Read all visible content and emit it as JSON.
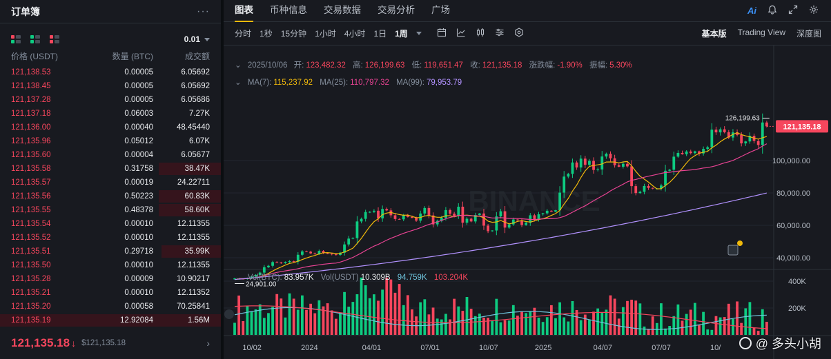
{
  "orderbook": {
    "title": "订单簿",
    "more": "···",
    "precision": "0.01",
    "columns": [
      "价格 (USDT)",
      "数量 (BTC)",
      "成交额"
    ],
    "rows": [
      {
        "price": "121,138.53",
        "qty": "0.00005",
        "total": "6.05692",
        "depth": 0
      },
      {
        "price": "121,138.45",
        "qty": "0.00005",
        "total": "6.05692",
        "depth": 0
      },
      {
        "price": "121,137.28",
        "qty": "0.00005",
        "total": "6.05686",
        "depth": 0
      },
      {
        "price": "121,137.18",
        "qty": "0.06003",
        "total": "7.27K",
        "depth": 0
      },
      {
        "price": "121,136.00",
        "qty": "0.00040",
        "total": "48.45440",
        "depth": 0
      },
      {
        "price": "121,135.96",
        "qty": "0.05012",
        "total": "6.07K",
        "depth": 0
      },
      {
        "price": "121,135.60",
        "qty": "0.00004",
        "total": "6.05677",
        "depth": 0
      },
      {
        "price": "121,135.58",
        "qty": "0.31758",
        "total": "38.47K",
        "depth": 0.28
      },
      {
        "price": "121,135.57",
        "qty": "0.00019",
        "total": "24.22711",
        "depth": 0
      },
      {
        "price": "121,135.56",
        "qty": "0.50223",
        "total": "60.83K",
        "depth": 0.28
      },
      {
        "price": "121,135.55",
        "qty": "0.48378",
        "total": "58.60K",
        "depth": 0.28
      },
      {
        "price": "121,135.54",
        "qty": "0.00010",
        "total": "12.11355",
        "depth": 0
      },
      {
        "price": "121,135.52",
        "qty": "0.00010",
        "total": "12.11355",
        "depth": 0
      },
      {
        "price": "121,135.51",
        "qty": "0.29718",
        "total": "35.99K",
        "depth": 0.27
      },
      {
        "price": "121,135.50",
        "qty": "0.00010",
        "total": "12.11355",
        "depth": 0
      },
      {
        "price": "121,135.28",
        "qty": "0.00009",
        "total": "10.90217",
        "depth": 0
      },
      {
        "price": "121,135.21",
        "qty": "0.00010",
        "total": "12.11352",
        "depth": 0
      },
      {
        "price": "121,135.20",
        "qty": "0.00058",
        "total": "70.25841",
        "depth": 0
      },
      {
        "price": "121,135.19",
        "qty": "12.92084",
        "total": "1.56M",
        "depth": 1.0
      }
    ],
    "last_price": "121,135.18",
    "last_price_arrow": "↓",
    "last_price_usd": "$121,135.18"
  },
  "tabs": [
    "图表",
    "币种信息",
    "交易数据",
    "交易分析",
    "广场"
  ],
  "active_tab": "图表",
  "tab_icons": {
    "ai": "Ai",
    "bell": "bell-icon",
    "expand": "expand-icon",
    "settings": "settings-icon"
  },
  "timeframes": [
    "分时",
    "1秒",
    "15分钟",
    "1小时",
    "4小时",
    "1日",
    "1周"
  ],
  "active_timeframe": "1周",
  "views": [
    "基本版",
    "Trading View",
    "深度图"
  ],
  "active_view": "基本版",
  "ohlc": {
    "date": "2025/10/06",
    "open_label": "开:",
    "open": "123,482.32",
    "high_label": "高:",
    "high": "126,199.63",
    "low_label": "低:",
    "low": "119,651.47",
    "close_label": "收:",
    "close": "121,135.18",
    "change_label": "涨跌幅:",
    "change": "-1.90%",
    "amp_label": "振幅:",
    "amp": "5.30%"
  },
  "ma": {
    "ma7_label": "MA(7):",
    "ma7": "115,237.92",
    "ma25_label": "MA(25):",
    "ma25": "110,797.32",
    "ma99_label": "MA(99):",
    "ma99": "79,953.79"
  },
  "vol": {
    "btc_label": "Vol(BTC):",
    "btc": "83.957K",
    "usdt_label": "Vol(USDT)",
    "usdt": "10.309B",
    "ma1": "94.759K",
    "ma2": "103.204K"
  },
  "watermark": "BINANCE",
  "footer_watermark": "@ 多头小胡",
  "colors": {
    "up": "#0ecb81",
    "down": "#f6465d",
    "ma7": "#f0b90b",
    "ma25": "#e84393",
    "ma99": "#b292ff",
    "vol_ma1": "#6ec3db",
    "vol_ma2": "#f6465d"
  },
  "chart_data": {
    "type": "candlestick",
    "interval": "1周",
    "price_axis_ticks": [
      "40,000.00",
      "60,000.00",
      "80,000.00",
      "100,000.00"
    ],
    "volume_axis_ticks": [
      "200K",
      "400K"
    ],
    "x_tick_labels": [
      "10/02",
      "2024",
      "04/01",
      "07/01",
      "10/07",
      "2025",
      "04/07",
      "07/07",
      "10/"
    ],
    "last_price_label": "121,135.18",
    "high_marker": "126,199.63",
    "low_marker": "24,901.00",
    "closes": [
      27200,
      27000,
      26900,
      27400,
      28400,
      29400,
      30800,
      34100,
      35000,
      37300,
      37000,
      36600,
      37300,
      37900,
      37500,
      41800,
      43900,
      43700,
      42700,
      42300,
      44200,
      42800,
      42500,
      42100,
      41700,
      43100,
      48200,
      51800,
      52100,
      62400,
      64000,
      68200,
      68300,
      69000,
      64300,
      70100,
      69200,
      66200,
      63900,
      63700,
      66200,
      65200,
      64600,
      62900,
      67300,
      70700,
      66100,
      60600,
      62800,
      64600,
      69400,
      67200,
      65800,
      71500,
      61600,
      64100,
      62400,
      66400,
      67300,
      59800,
      56400,
      56800,
      65500,
      68700,
      58600,
      60600,
      63600,
      63100,
      60200,
      61600,
      66200,
      63400,
      66800,
      67400,
      69000,
      68500,
      69300,
      80200,
      90100,
      91800,
      98800,
      95700,
      101200,
      97400,
      99800,
      94200,
      94500,
      102500,
      104200,
      101400,
      97100,
      96200,
      98000,
      96400,
      84200,
      79900,
      80700,
      84300,
      83100,
      82700,
      82800,
      84600,
      93700,
      94300,
      102400,
      104700,
      103900,
      105600,
      104600,
      105700,
      104400,
      107200,
      108200,
      119100,
      117400,
      119300,
      117500,
      114200,
      117400,
      115800,
      110600,
      111800,
      115300,
      112100,
      109600,
      123500,
      121135
    ],
    "ma7": [
      115237.92
    ],
    "ma25": [
      110797.32
    ],
    "ma99": [
      79953.79
    ],
    "volume_btc": [
      83957
    ]
  }
}
